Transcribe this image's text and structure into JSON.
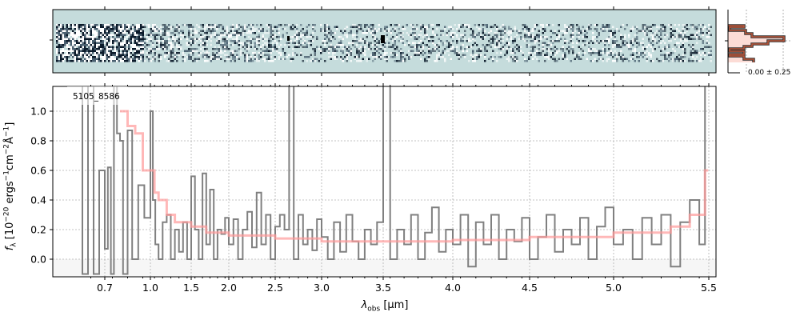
{
  "chart_data": {
    "type": "line",
    "object_id": "5105_8586",
    "xlabel": {
      "main": "λ",
      "sub": "obs",
      "unit": " [μm]"
    },
    "ylabel": {
      "main": "f",
      "sub": "λ",
      "pre": " [10",
      "exp1": "−20",
      "mid": " ergs",
      "exp2": "−1",
      "mid2": "cm",
      "exp3": "−2",
      "mid3": "Å",
      "exp4": "−1",
      "end": "]"
    },
    "xticks": [
      "0.7",
      "1.0",
      "1.5",
      "2.0",
      "2.5",
      "3.0",
      "3.5",
      "4.0",
      "4.5",
      "5.0",
      "5.5"
    ],
    "yticks": [
      "0.0",
      "0.2",
      "0.4",
      "0.6",
      "0.8",
      "1.0"
    ],
    "ylim": [
      -0.12,
      1.17
    ],
    "xlim": [
      0.6,
      5.52
    ],
    "grid": true,
    "series": [
      {
        "name": "spectrum",
        "color": "#808080",
        "x": [
          0.6,
          0.62,
          0.64,
          0.66,
          0.68,
          0.7,
          0.72,
          0.74,
          0.76,
          0.78,
          0.8,
          0.82,
          0.85,
          0.88,
          0.92,
          0.96,
          1.0,
          1.03,
          1.06,
          1.1,
          1.15,
          1.2,
          1.25,
          1.3,
          1.35,
          1.4,
          1.45,
          1.5,
          1.55,
          1.6,
          1.65,
          1.7,
          1.75,
          1.8,
          1.85,
          1.9,
          1.95,
          2.0,
          2.05,
          2.1,
          2.15,
          2.2,
          2.25,
          2.3,
          2.35,
          2.4,
          2.45,
          2.5,
          2.55,
          2.6,
          2.65,
          2.7,
          2.75,
          2.8,
          2.85,
          2.9,
          2.95,
          3.0,
          3.05,
          3.1,
          3.15,
          3.2,
          3.25,
          3.3,
          3.35,
          3.4,
          3.45,
          3.5,
          3.55,
          3.6,
          3.65,
          3.7,
          3.75,
          3.8,
          3.85,
          3.9,
          3.95,
          4.0,
          4.05,
          4.1,
          4.15,
          4.2,
          4.25,
          4.3,
          4.35,
          4.4,
          4.45,
          4.5,
          4.55,
          4.6,
          4.65,
          4.7,
          4.75,
          4.8,
          4.85,
          4.9,
          4.95,
          5.0,
          5.05,
          5.1,
          5.15,
          5.2,
          5.25,
          5.3,
          5.35,
          5.4,
          5.45,
          5.48
        ],
        "y": [
          1.2,
          -0.1,
          1.2,
          -0.1,
          0.6,
          0.07,
          0.62,
          -0.1,
          1.2,
          0.85,
          0.8,
          -0.1,
          0.87,
          0.0,
          0.5,
          0.28,
          1.0,
          0.4,
          0.1,
          0.0,
          0.25,
          0.3,
          0.0,
          0.2,
          0.05,
          0.25,
          0.0,
          0.56,
          0.2,
          0.0,
          0.58,
          0.1,
          0.47,
          0.0,
          0.2,
          0.17,
          0.28,
          0.1,
          0.27,
          0.0,
          0.2,
          0.32,
          0.08,
          0.45,
          0.1,
          0.3,
          0.0,
          0.22,
          0.3,
          0.2,
          1.2,
          0.0,
          0.3,
          0.1,
          0.2,
          0.06,
          0.27,
          0.15,
          0.0,
          0.25,
          0.05,
          0.3,
          0.12,
          0.0,
          0.2,
          0.1,
          0.25,
          1.2,
          0.0,
          0.2,
          0.1,
          0.3,
          0.0,
          0.18,
          0.35,
          0.05,
          0.2,
          0.1,
          0.3,
          -0.05,
          0.25,
          0.1,
          0.3,
          0.0,
          0.2,
          0.12,
          0.28,
          0.0,
          0.15,
          0.3,
          0.05,
          0.2,
          0.1,
          0.28,
          0.0,
          0.22,
          0.35,
          0.1,
          0.2,
          0.0,
          0.28,
          0.1,
          0.3,
          -0.05,
          0.25,
          0.4,
          0.1,
          1.2
        ]
      },
      {
        "name": "model",
        "color": "#ff9a9a",
        "x": [
          0.8,
          0.85,
          0.9,
          0.95,
          1.0,
          1.05,
          1.1,
          1.2,
          1.3,
          1.5,
          1.7,
          2.0,
          2.5,
          3.0,
          3.5,
          4.0,
          4.5,
          5.0,
          5.3,
          5.4,
          5.48
        ],
        "y": [
          1.0,
          0.9,
          0.85,
          0.6,
          0.6,
          0.45,
          0.4,
          0.3,
          0.25,
          0.22,
          0.18,
          0.16,
          0.14,
          0.12,
          0.12,
          0.13,
          0.15,
          0.18,
          0.22,
          0.3,
          0.6
        ]
      }
    ],
    "side_histogram": {
      "label": "0.00 ± 0.25"
    }
  }
}
